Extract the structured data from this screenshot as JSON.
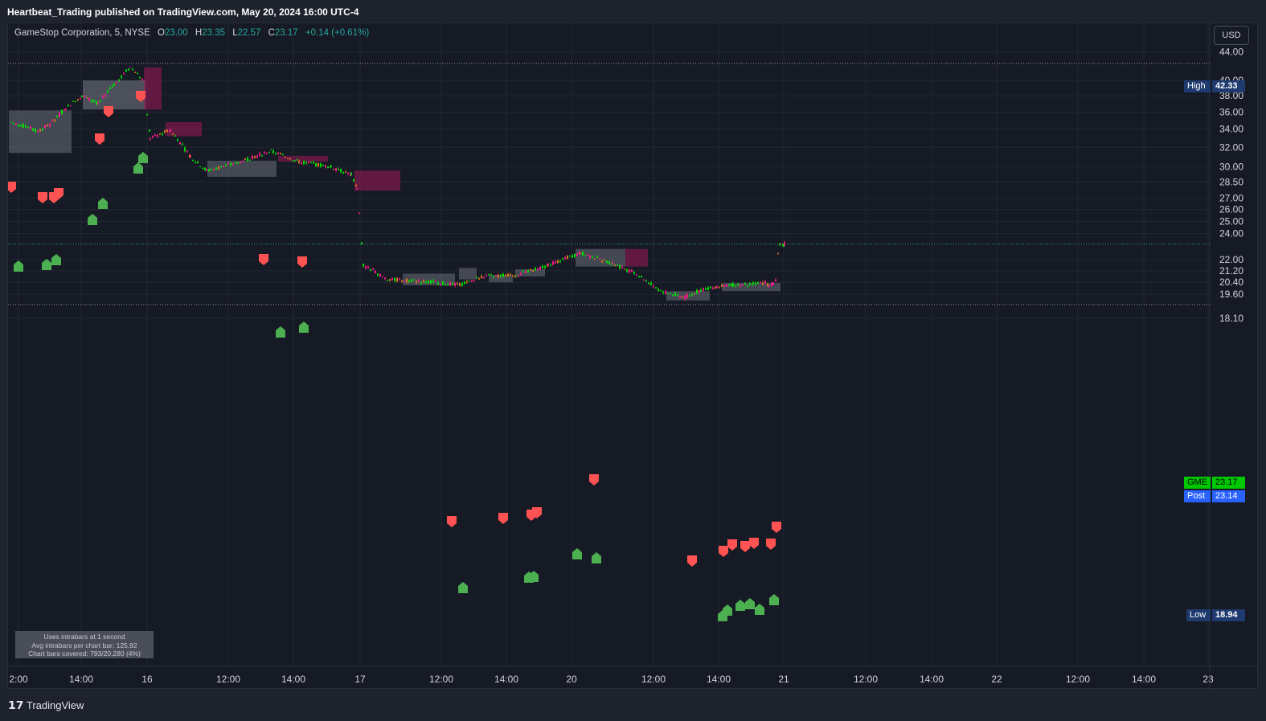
{
  "header": {
    "publisher_line": "Heartbeat_Trading published on TradingView.com, May 20, 2024 16:00 UTC-4"
  },
  "legend": {
    "symbol": "GameStop Corporation, 5, NYSE",
    "open_label": "O",
    "open": "23.00",
    "high_label": "H",
    "high": "23.35",
    "low_label": "L",
    "low": "22.57",
    "close_label": "C",
    "close": "23.17",
    "change": "+0.14 (+0.61%)"
  },
  "currency": "USD",
  "price_tags": {
    "high_label": "High",
    "high_value": "42.33",
    "gme_label": "GME",
    "gme_value": "23.17",
    "post_label": "Post",
    "post_value": "23.14",
    "low_label": "Low",
    "low_value": "18.94"
  },
  "intrabar_info": {
    "line1": "Uses intrabars at 1 second",
    "line2": "Avg intrabars per chart bar: 125.92",
    "line3": "Chart bars covered: 793/20,280 (4%)"
  },
  "footer": {
    "brand": "TradingView"
  },
  "colors": {
    "background": "#161a25",
    "grid": "#232734",
    "bull": "#00e600",
    "bear": "#ff1a8c",
    "neutral": "#e07b20",
    "signal_up": "#4caf50",
    "signal_down": "#ff5252",
    "last_price_line": "#26a69a",
    "high_low_tag": "#1e3a6e",
    "post_tag": "#2962ff"
  },
  "chart_data": {
    "type": "line",
    "title": "GameStop Corporation, 5, NYSE",
    "y_axis": {
      "scale": "log",
      "ticks": [
        "18.10",
        "19.60",
        "20.40",
        "21.20",
        "22.00",
        "24.00",
        "25.00",
        "26.00",
        "27.00",
        "28.50",
        "30.00",
        "32.00",
        "34.00",
        "36.00",
        "38.00",
        "40.00",
        "44.00"
      ],
      "ylim": [
        17.8,
        46.0
      ]
    },
    "x_axis": {
      "ticks": [
        "2:00",
        "14:00",
        "16",
        "12:00",
        "14:00",
        "17",
        "12:00",
        "14:00",
        "20",
        "12:00",
        "14:00",
        "21",
        "12:00",
        "14:00",
        "22",
        "12:00",
        "14:00",
        "23"
      ]
    },
    "series": [
      {
        "name": "GME",
        "x": [
          "May 14 11:30",
          "May 14 12:30",
          "May 14 13:00",
          "May 14 13:30",
          "May 14 14:00",
          "May 14 14:30",
          "May 14 15:00",
          "May 14 15:30",
          "May 14 16:00",
          "May 15 10:00",
          "May 15 11:00",
          "May 15 12:00",
          "May 15 13:00",
          "May 15 13:30",
          "May 15 14:00",
          "May 15 14:30",
          "May 15 15:00",
          "May 15 15:30",
          "May 15 16:00",
          "May 16 09:30",
          "May 16 10:00",
          "May 16 11:00",
          "May 16 12:00",
          "May 16 13:00",
          "May 16 14:00",
          "May 16 15:00",
          "May 16 16:00",
          "May 17 09:30",
          "May 17 10:30",
          "May 17 11:30",
          "May 17 12:30",
          "May 17 13:30",
          "May 17 14:30",
          "May 17 15:30",
          "May 17 16:00",
          "May 20 09:30",
          "May 20 10:30",
          "May 20 11:30",
          "May 20 12:00",
          "May 20 12:30",
          "May 20 13:30",
          "May 20 14:30",
          "May 20 15:00",
          "May 20 15:30",
          "May 20 15:45",
          "May 20 16:00"
        ],
        "y": [
          34.8,
          33.8,
          34.5,
          36.5,
          38.0,
          37.0,
          39.5,
          41.8,
          40.2,
          33.0,
          33.9,
          31.0,
          29.6,
          30.2,
          31.6,
          30.5,
          30.0,
          29.2,
          28.0,
          21.6,
          20.6,
          20.4,
          20.2,
          20.8,
          20.9,
          21.6,
          22.5,
          21.7,
          21.0,
          19.8,
          19.4,
          19.9,
          20.1,
          20.2,
          20.3,
          20.4,
          20.2,
          20.3,
          20.5,
          22.6,
          23.17,
          23.17,
          23.17,
          23.17,
          23.17,
          23.17
        ]
      }
    ]
  }
}
